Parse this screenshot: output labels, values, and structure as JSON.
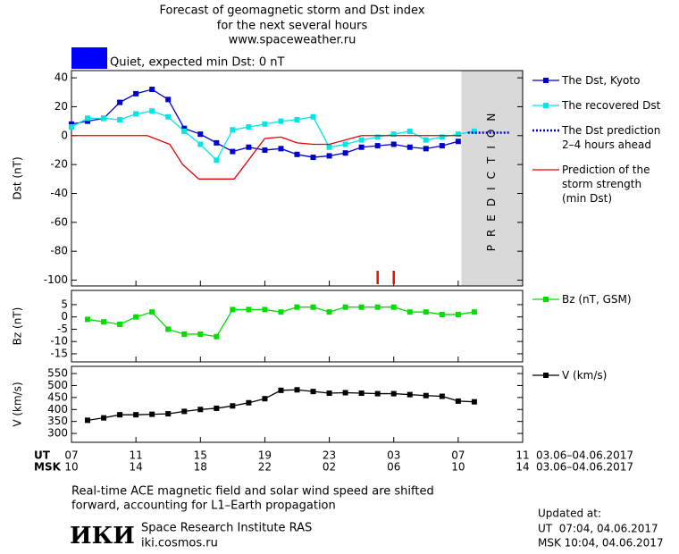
{
  "header": {
    "title_lines": [
      "Forecast of geomagnetic storm and Dst index",
      "for the next several hours",
      "www.spaceweather.ru"
    ]
  },
  "quiet": {
    "label": "Quiet, expected min Dst: 0 nT",
    "color": "#0000ff"
  },
  "chart_data": [
    {
      "type": "line",
      "y_label": "Dst (nT)",
      "xlim": [
        0,
        28
      ],
      "ylim": [
        -104,
        45
      ],
      "yticks": [
        40,
        20,
        0,
        -20,
        -40,
        -60,
        -80,
        -100
      ],
      "prediction_start": 24.2,
      "prediction_label": "PREDICTION",
      "markers_x": [
        19,
        20
      ],
      "markers_color": "#ff0000",
      "series": [
        {
          "name": "The Dst, Kyoto",
          "color": "#0000cc",
          "marker": "square",
          "x": [
            0,
            1,
            2,
            3,
            4,
            5,
            6,
            7,
            8,
            9,
            10,
            11,
            12,
            13,
            14,
            15,
            16,
            17,
            18,
            19,
            20,
            21,
            22,
            23,
            24
          ],
          "values": [
            8,
            10,
            12,
            23,
            29,
            32,
            25,
            5,
            1,
            -5,
            -11,
            -8,
            -10,
            -9,
            -13,
            -15,
            -14,
            -12,
            -8,
            -7,
            -6,
            -8,
            -9,
            -7,
            -4
          ]
        },
        {
          "name": "The recovered Dst",
          "color": "#00e5e5",
          "marker": "square",
          "x": [
            0,
            1,
            2,
            3,
            4,
            5,
            6,
            7,
            8,
            9,
            10,
            11,
            12,
            13,
            14,
            15,
            16,
            17,
            18,
            19,
            20,
            21,
            22,
            23,
            24,
            25
          ],
          "values": [
            6,
            12,
            12,
            11,
            15,
            17,
            13,
            3,
            -6,
            -17,
            4,
            6,
            8,
            10,
            11,
            13,
            -8,
            -6,
            -3,
            -1,
            1,
            3,
            -3,
            -1,
            1,
            3
          ]
        },
        {
          "name": "The Dst prediction\n2–4 hours ahead",
          "color": "#0000cc",
          "dash": "2,2",
          "x": [
            24.6,
            27.2
          ],
          "values": [
            2,
            2
          ]
        },
        {
          "name": "Prediction of the\nstorm strength\n(min Dst)",
          "color": "#e00000",
          "x": [
            0,
            4.7,
            6.1,
            6.9,
            7.9,
            10.1,
            12,
            13,
            14,
            15,
            16,
            17,
            18,
            24.2
          ],
          "values": [
            0,
            0,
            -6,
            -20,
            -30,
            -30,
            -2,
            -1,
            -5,
            -6,
            -6,
            -3,
            0,
            0
          ]
        }
      ]
    },
    {
      "type": "line",
      "y_label": "Bz (nT)",
      "xlim": [
        0,
        28
      ],
      "ylim": [
        -18.3,
        10.8
      ],
      "yticks": [
        5,
        0,
        -5,
        -10,
        -15
      ],
      "series": [
        {
          "name": "Bz (nT, GSM)",
          "color": "#00dd00",
          "marker": "square",
          "x": [
            1,
            2,
            3,
            4,
            5,
            6,
            7,
            8,
            9,
            10,
            11,
            12,
            13,
            14,
            15,
            16,
            17,
            18,
            19,
            20,
            21,
            22,
            23,
            24,
            25
          ],
          "values": [
            -1,
            -2,
            -3,
            0,
            2,
            -5,
            -7,
            -7,
            -8,
            3,
            3,
            3,
            2,
            4,
            4,
            2,
            4,
            4,
            4,
            4,
            2,
            2,
            1,
            1,
            2
          ]
        }
      ]
    },
    {
      "type": "line",
      "y_label": "V (km/s)",
      "xlim": [
        0,
        28
      ],
      "ylim": [
        263,
        580
      ],
      "yticks": [
        550,
        500,
        450,
        400,
        350,
        300
      ],
      "xticks": [
        {
          "value": 0,
          "label": "07"
        },
        {
          "value": 4,
          "label": "11"
        },
        {
          "value": 8,
          "label": "15"
        },
        {
          "value": 12,
          "label": "19"
        },
        {
          "value": 16,
          "label": "23"
        },
        {
          "value": 20,
          "label": "03"
        },
        {
          "value": 24,
          "label": "07"
        },
        {
          "value": 28,
          "label": "11"
        }
      ],
      "x2tick_labels": [
        "10",
        "14",
        "18",
        "22",
        "02",
        "06",
        "10",
        "14"
      ],
      "x_row_labels": [
        "UT",
        "MSK"
      ],
      "date_range": "03.06–04.06.2017",
      "series": [
        {
          "name": "V (km/s)",
          "color": "#000000",
          "marker": "square",
          "x": [
            1,
            2,
            3,
            4,
            5,
            6,
            7,
            8,
            9,
            10,
            11,
            12,
            13,
            14,
            15,
            16,
            17,
            18,
            19,
            20,
            21,
            22,
            23,
            24,
            25
          ],
          "values": [
            355,
            365,
            378,
            378,
            380,
            382,
            392,
            400,
            405,
            415,
            428,
            445,
            480,
            482,
            475,
            468,
            470,
            468,
            466,
            466,
            462,
            458,
            455,
            435,
            432
          ]
        }
      ]
    }
  ],
  "footer": {
    "note_lines": [
      "Real-time ACE magnetic field and solar wind speed are shifted",
      "forward, accounting for L1–Earth propagation"
    ],
    "logo": "ИКИ",
    "institute": "Space Research Institute RAS",
    "site": "iki.cosmos.ru",
    "updated_label": "Updated at:",
    "updated_ut": "UT  07:04, 04.06.2017",
    "updated_msk": "MSK 10:04, 04.06.2017"
  }
}
